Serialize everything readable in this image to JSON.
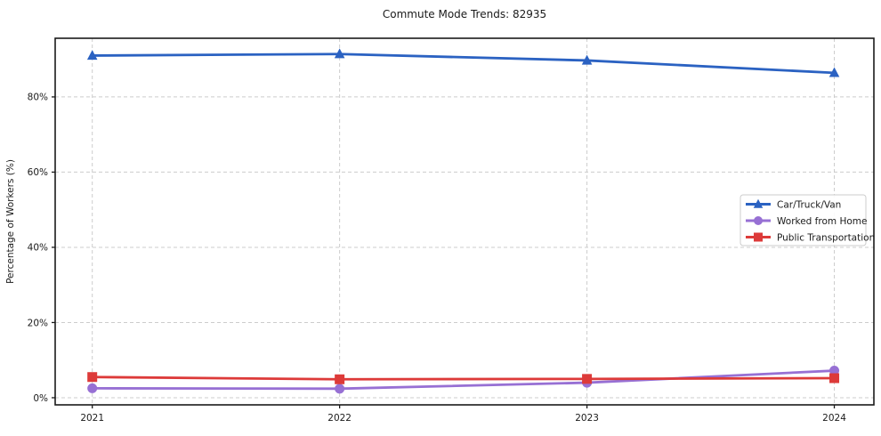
{
  "chart_data": {
    "type": "line",
    "title": "Commute Mode Trends: 82935",
    "xlabel": "",
    "ylabel": "Percentage of Workers (%)",
    "x": [
      2021,
      2022,
      2023,
      2024
    ],
    "x_tick_labels": [
      "2021",
      "2022",
      "2023",
      "2024"
    ],
    "series": [
      {
        "name": "Car/Truck/Van",
        "color": "#2b62c2",
        "marker": "triangle",
        "values": [
          91.0,
          91.4,
          89.7,
          86.4
        ]
      },
      {
        "name": "Worked from Home",
        "color": "#9770d4",
        "marker": "circle",
        "values": [
          2.5,
          2.4,
          4.0,
          7.2
        ]
      },
      {
        "name": "Public Transportation",
        "color": "#dd3a39",
        "marker": "square",
        "values": [
          5.5,
          4.9,
          5.0,
          5.2
        ]
      }
    ],
    "yticks": [
      0,
      20,
      40,
      60,
      80
    ],
    "ytick_labels": [
      "0%",
      "20%",
      "40%",
      "60%",
      "80%"
    ],
    "ylim": [
      -1.9,
      95.6
    ],
    "grid": true,
    "grid_style": "dashed",
    "grid_color": "#cccccc",
    "axis_color": "#1a1a1a",
    "legend_position": "center right",
    "legend_entries": [
      "Car/Truck/Van",
      "Worked from Home",
      "Public Transportation"
    ]
  }
}
